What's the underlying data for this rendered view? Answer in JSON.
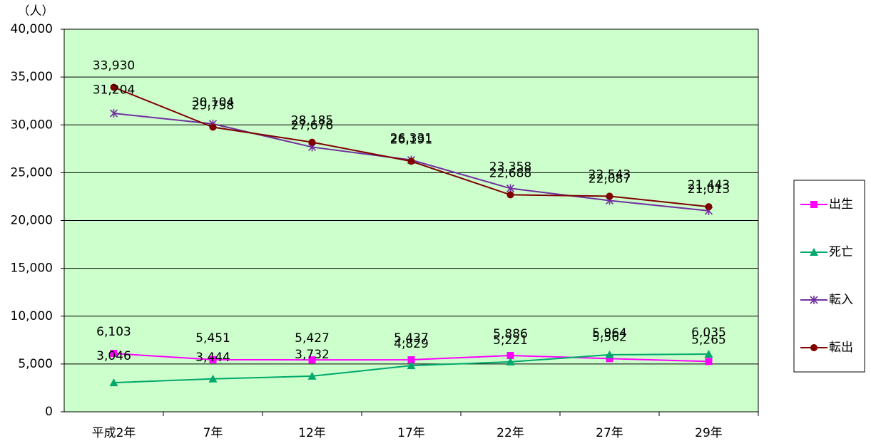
{
  "chart_data": {
    "type": "line",
    "y_unit_label": "（人）",
    "categories": [
      "平成2年",
      "7年",
      "12年",
      "17年",
      "22年",
      "27年",
      "29年"
    ],
    "series": [
      {
        "name": "出生",
        "color": "#ff00ff",
        "marker": "square",
        "values": [
          6103,
          5451,
          5427,
          5437,
          5886,
          5562,
          5265
        ],
        "value_labels": [
          "6,103",
          "5,451",
          "5,427",
          "5,437",
          "5,886",
          "5,562",
          "5,265"
        ]
      },
      {
        "name": "死亡",
        "color": "#00a86b",
        "marker": "triangle",
        "values": [
          3046,
          3444,
          3732,
          4829,
          5221,
          5964,
          6035
        ],
        "value_labels": [
          "3,046",
          "3,444",
          "3,732",
          "4,829",
          "5,221",
          "5,964",
          "6,035"
        ]
      },
      {
        "name": "転入",
        "color": "#7030a0",
        "marker": "asterisk",
        "values": [
          31204,
          30104,
          27676,
          26331,
          23358,
          22087,
          21013
        ],
        "value_labels": [
          "31,204",
          "30,104",
          "27,676",
          "26,331",
          "23,358",
          "22,087",
          "21,013"
        ]
      },
      {
        "name": "転出",
        "color": "#800000",
        "marker": "circle",
        "values": [
          33930,
          29758,
          28185,
          26191,
          22688,
          22543,
          21443
        ],
        "value_labels": [
          "33,930",
          "29,758",
          "28,185",
          "26,191",
          "22,688",
          "22,543",
          "21,443"
        ]
      }
    ],
    "ylim": [
      0,
      40000
    ],
    "yticks": [
      0,
      {
        "value": 5000,
        "label": "5,000"
      },
      {
        "value": 10000,
        "label": "10,000"
      },
      {
        "value": 15000,
        "label": "15,000"
      },
      {
        "value": 20000,
        "label": "20,000"
      },
      {
        "value": 25000,
        "label": "25,000"
      },
      {
        "value": 30000,
        "label": "30,000"
      },
      {
        "value": 35000,
        "label": "35,000"
      },
      {
        "value": 40000,
        "label": "40,000"
      }
    ],
    "grid": true,
    "plot_background": "#ccffcc",
    "legend": "right"
  }
}
